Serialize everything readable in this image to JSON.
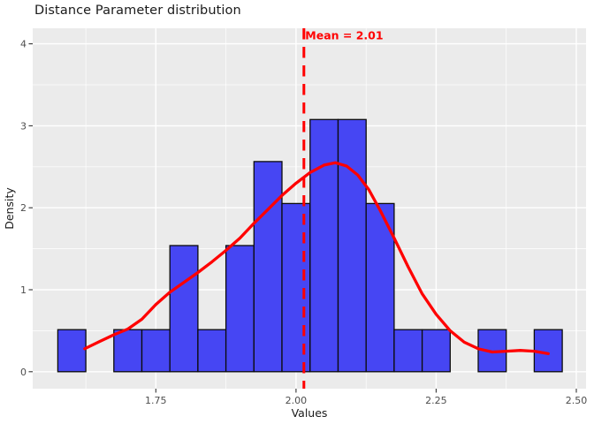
{
  "chart_data": {
    "type": "bar",
    "subtype": "histogram_with_density",
    "title": "Distance Parameter distribution",
    "xlabel": "Values",
    "ylabel": "Density",
    "x_tick_values": [
      1.75,
      2.0,
      2.25,
      2.5
    ],
    "x_tick_labels": [
      "1.75",
      "2.00",
      "2.25",
      "2.50"
    ],
    "y_tick_values": [
      0,
      1,
      2,
      3,
      4
    ],
    "y_tick_labels": [
      "0",
      "1",
      "2",
      "3",
      "4"
    ],
    "x_minor_gridlines": [
      1.625,
      1.875,
      2.125,
      2.375
    ],
    "y_minor_gridlines": [
      0.5,
      1.5,
      2.5,
      3.5
    ],
    "xlim": [
      1.53,
      2.517
    ],
    "ylim": [
      -0.207,
      4.19
    ],
    "grid": true,
    "legend": "none",
    "panel_background": "#EBEBEB",
    "grid_color": "#FFFFFF",
    "histogram": {
      "bin_start": 1.575,
      "bin_width": 0.05,
      "counts": [
        1,
        0,
        1,
        1,
        3,
        1,
        3,
        5,
        4,
        6,
        6,
        4,
        1,
        1,
        0,
        1,
        0,
        1
      ],
      "n": 39,
      "bar_heights_density": [
        0.51,
        0,
        0.51,
        0.51,
        1.54,
        0.51,
        1.54,
        2.56,
        2.05,
        3.08,
        3.08,
        2.05,
        0.51,
        0.51,
        0,
        0.51,
        0,
        0.51
      ],
      "fill_color": "#4646F3",
      "stroke_color": "#0B0B0B"
    },
    "density_curve": {
      "color": "#FF0000",
      "points": [
        [
          1.623,
          0.28
        ],
        [
          1.65,
          0.37
        ],
        [
          1.675,
          0.45
        ],
        [
          1.7,
          0.52
        ],
        [
          1.725,
          0.64
        ],
        [
          1.75,
          0.82
        ],
        [
          1.775,
          0.97
        ],
        [
          1.8,
          1.09
        ],
        [
          1.825,
          1.21
        ],
        [
          1.85,
          1.34
        ],
        [
          1.875,
          1.48
        ],
        [
          1.9,
          1.63
        ],
        [
          1.925,
          1.81
        ],
        [
          1.95,
          1.98
        ],
        [
          1.975,
          2.15
        ],
        [
          2.0,
          2.3
        ],
        [
          2.025,
          2.43
        ],
        [
          2.05,
          2.52
        ],
        [
          2.07,
          2.55
        ],
        [
          2.09,
          2.51
        ],
        [
          2.11,
          2.4
        ],
        [
          2.13,
          2.22
        ],
        [
          2.15,
          1.97
        ],
        [
          2.175,
          1.63
        ],
        [
          2.2,
          1.28
        ],
        [
          2.225,
          0.95
        ],
        [
          2.25,
          0.7
        ],
        [
          2.275,
          0.5
        ],
        [
          2.3,
          0.36
        ],
        [
          2.325,
          0.28
        ],
        [
          2.35,
          0.24
        ],
        [
          2.375,
          0.25
        ],
        [
          2.4,
          0.26
        ],
        [
          2.425,
          0.25
        ],
        [
          2.45,
          0.22
        ]
      ]
    },
    "mean_line": {
      "value": 2.014,
      "label": "Mean = 2.01",
      "color": "#FF0000",
      "style": "dashed"
    },
    "text_colors": {
      "tick_label": "#4D4D4D",
      "axis_title": "#1A1A1A",
      "title": "#1A1A1A"
    }
  }
}
